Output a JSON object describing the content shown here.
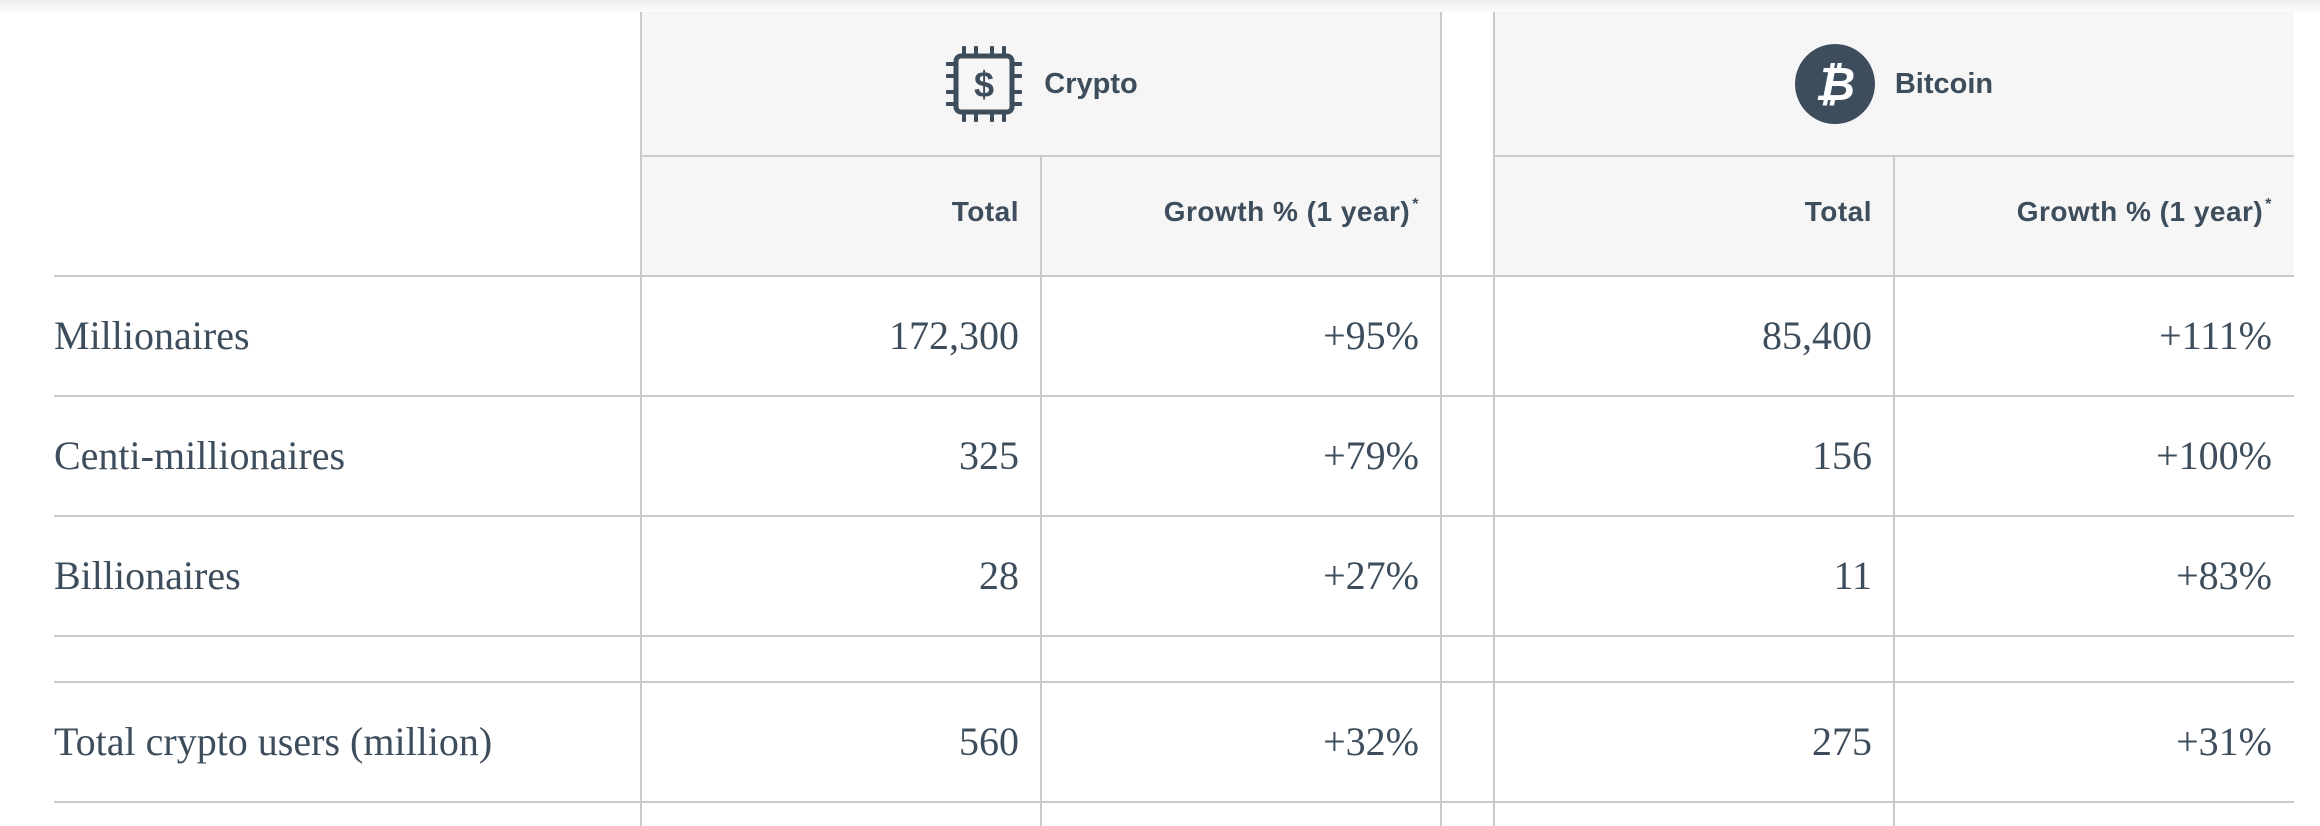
{
  "groups": [
    {
      "name": "Crypto",
      "icon": "chip-dollar-icon"
    },
    {
      "name": "Bitcoin",
      "icon": "bitcoin-icon"
    }
  ],
  "column_headers": {
    "total": "Total",
    "growth": "Growth % (1 year)",
    "growth_note_mark": "*"
  },
  "rows": [
    {
      "label": "Millionaires",
      "crypto_total": "172,300",
      "crypto_growth": "+95%",
      "bitcoin_total": "85,400",
      "bitcoin_growth": "+111%"
    },
    {
      "label": "Centi-millionaires",
      "crypto_total": "325",
      "crypto_growth": "+79%",
      "bitcoin_total": "156",
      "bitcoin_growth": "+100%"
    },
    {
      "label": "Billionaires",
      "crypto_total": "28",
      "crypto_growth": "+27%",
      "bitcoin_total": "11",
      "bitcoin_growth": "+83%"
    },
    {
      "label": "Total crypto users (million)",
      "crypto_total": "560",
      "crypto_growth": "+32%",
      "bitcoin_total": "275",
      "bitcoin_growth": "+31%"
    }
  ],
  "colors": {
    "text": "#3d4d5c",
    "header_bg": "#f6f6f6",
    "rule": "#c9cacc"
  }
}
